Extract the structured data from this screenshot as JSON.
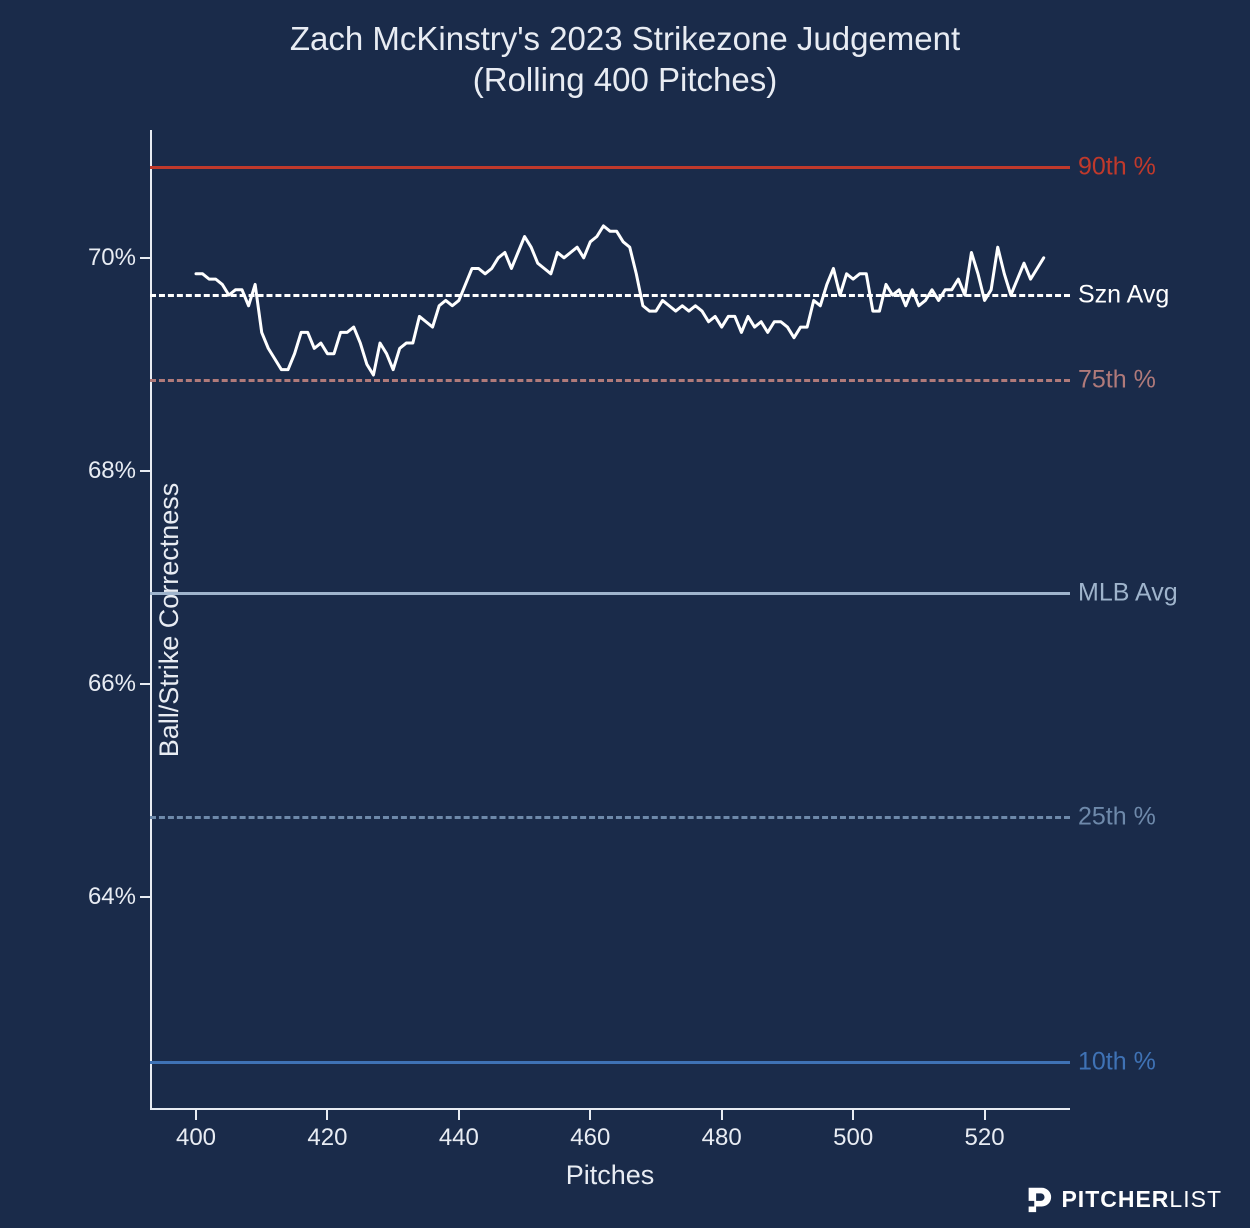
{
  "chart": {
    "type": "line",
    "title_line1": "Zach McKinstry's 2023 Strikezone Judgement",
    "title_line2": "(Rolling 400 Pitches)",
    "title_fontsize": 33,
    "title_color": "#e8ecf3",
    "background_color": "#1a2b4a",
    "text_color": "#e8ecf3",
    "xlabel": "Pitches",
    "ylabel": "Ball/Strike Correctness",
    "label_fontsize": 27,
    "tick_fontsize": 24,
    "xlim": [
      393,
      533
    ],
    "ylim": [
      62.0,
      71.2
    ],
    "xticks": [
      400,
      420,
      440,
      460,
      480,
      500,
      520
    ],
    "yticks": [
      64,
      66,
      68,
      70
    ],
    "ytick_suffix": "%",
    "spine_color": "#e8ecf3",
    "reference_lines": [
      {
        "value": 70.85,
        "label": "90th %",
        "color": "#c0392b",
        "style": "solid",
        "width": 3
      },
      {
        "value": 69.65,
        "label": "Szn Avg",
        "color": "#ffffff",
        "style": "dashed",
        "width": 3
      },
      {
        "value": 68.85,
        "label": "75th %",
        "color": "#b07a7a",
        "style": "dashed",
        "width": 3
      },
      {
        "value": 66.85,
        "label": "MLB Avg",
        "color": "#9fb4cc",
        "style": "solid",
        "width": 3
      },
      {
        "value": 64.75,
        "label": "25th %",
        "color": "#6e89aa",
        "style": "dashed",
        "width": 3
      },
      {
        "value": 62.45,
        "label": "10th %",
        "color": "#3f72b5",
        "style": "solid",
        "width": 3
      }
    ],
    "series": {
      "color": "#ffffff",
      "width": 3,
      "x": [
        400,
        401,
        402,
        403,
        404,
        405,
        406,
        407,
        408,
        409,
        410,
        411,
        412,
        413,
        414,
        415,
        416,
        417,
        418,
        419,
        420,
        421,
        422,
        423,
        424,
        425,
        426,
        427,
        428,
        429,
        430,
        431,
        432,
        433,
        434,
        435,
        436,
        437,
        438,
        439,
        440,
        441,
        442,
        443,
        444,
        445,
        446,
        447,
        448,
        449,
        450,
        451,
        452,
        453,
        454,
        455,
        456,
        457,
        458,
        459,
        460,
        461,
        462,
        463,
        464,
        465,
        466,
        467,
        468,
        469,
        470,
        471,
        472,
        473,
        474,
        475,
        476,
        477,
        478,
        479,
        480,
        481,
        482,
        483,
        484,
        485,
        486,
        487,
        488,
        489,
        490,
        491,
        492,
        493,
        494,
        495,
        496,
        497,
        498,
        499,
        500,
        501,
        502,
        503,
        504,
        505,
        506,
        507,
        508,
        509,
        510,
        511,
        512,
        513,
        514,
        515,
        516,
        517,
        518,
        519,
        520,
        521,
        522,
        523,
        524,
        525,
        526,
        527,
        528,
        529
      ],
      "y": [
        69.85,
        69.85,
        69.8,
        69.8,
        69.75,
        69.65,
        69.7,
        69.7,
        69.55,
        69.75,
        69.3,
        69.15,
        69.05,
        68.95,
        68.95,
        69.1,
        69.3,
        69.3,
        69.15,
        69.2,
        69.1,
        69.1,
        69.3,
        69.3,
        69.35,
        69.2,
        69.0,
        68.9,
        69.2,
        69.1,
        68.95,
        69.15,
        69.2,
        69.2,
        69.45,
        69.4,
        69.35,
        69.55,
        69.6,
        69.55,
        69.6,
        69.75,
        69.9,
        69.9,
        69.85,
        69.9,
        70.0,
        70.05,
        69.9,
        70.05,
        70.2,
        70.1,
        69.95,
        69.9,
        69.85,
        70.05,
        70.0,
        70.05,
        70.1,
        70.0,
        70.15,
        70.2,
        70.3,
        70.25,
        70.25,
        70.15,
        70.1,
        69.85,
        69.55,
        69.5,
        69.5,
        69.6,
        69.55,
        69.5,
        69.55,
        69.5,
        69.55,
        69.5,
        69.4,
        69.45,
        69.35,
        69.45,
        69.45,
        69.3,
        69.45,
        69.35,
        69.4,
        69.3,
        69.4,
        69.4,
        69.35,
        69.25,
        69.35,
        69.35,
        69.6,
        69.55,
        69.75,
        69.9,
        69.65,
        69.85,
        69.8,
        69.85,
        69.85,
        69.5,
        69.5,
        69.75,
        69.65,
        69.7,
        69.55,
        69.7,
        69.55,
        69.6,
        69.7,
        69.6,
        69.7,
        69.7,
        69.8,
        69.65,
        70.05,
        69.85,
        69.6,
        69.7,
        70.1,
        69.85,
        69.65,
        69.8,
        69.95,
        69.8,
        69.9,
        70.0
      ]
    }
  },
  "branding": {
    "name": "pitcherlist-logo",
    "text_bold": "PITCHER",
    "text_light": "LIST",
    "color": "#ffffff"
  }
}
